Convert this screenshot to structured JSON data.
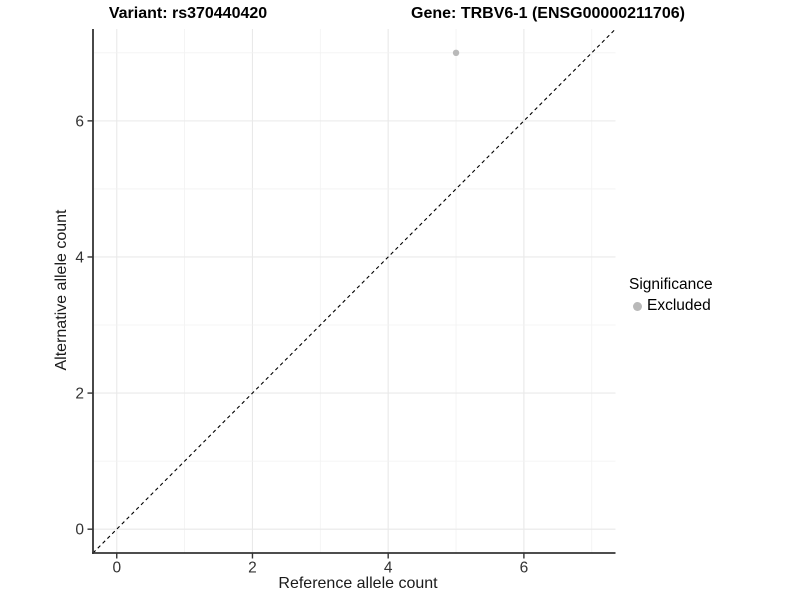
{
  "chart_data": {
    "type": "scatter",
    "title_left": "Variant: rs370440420",
    "title_right": "Gene: TRBV6-1 (ENSG00000211706)",
    "xlabel": "Reference allele count",
    "ylabel": "Alternative allele count",
    "xlim": [
      -0.35,
      7.35
    ],
    "ylim": [
      -0.35,
      7.35
    ],
    "x_ticks": [
      0,
      2,
      4,
      6
    ],
    "y_ticks": [
      0,
      2,
      4,
      6
    ],
    "minor_grid_step": 1,
    "grid": true,
    "identity_line": {
      "style": "dashed",
      "from": [
        -0.35,
        -0.35
      ],
      "to": [
        7.35,
        7.35
      ],
      "color": "#000000"
    },
    "points": [
      {
        "x": 5,
        "y": 7,
        "series": "Excluded"
      }
    ],
    "series": [
      {
        "name": "Excluded",
        "color": "#b9b9b9"
      }
    ],
    "legend": {
      "title": "Significance",
      "position": "right"
    },
    "colors": {
      "grid_major": "#e9e9e9",
      "grid_minor": "#f2f2f2",
      "axis_line": "#343434",
      "tick_mark": "#343434",
      "point": "#b9b9b9"
    }
  }
}
